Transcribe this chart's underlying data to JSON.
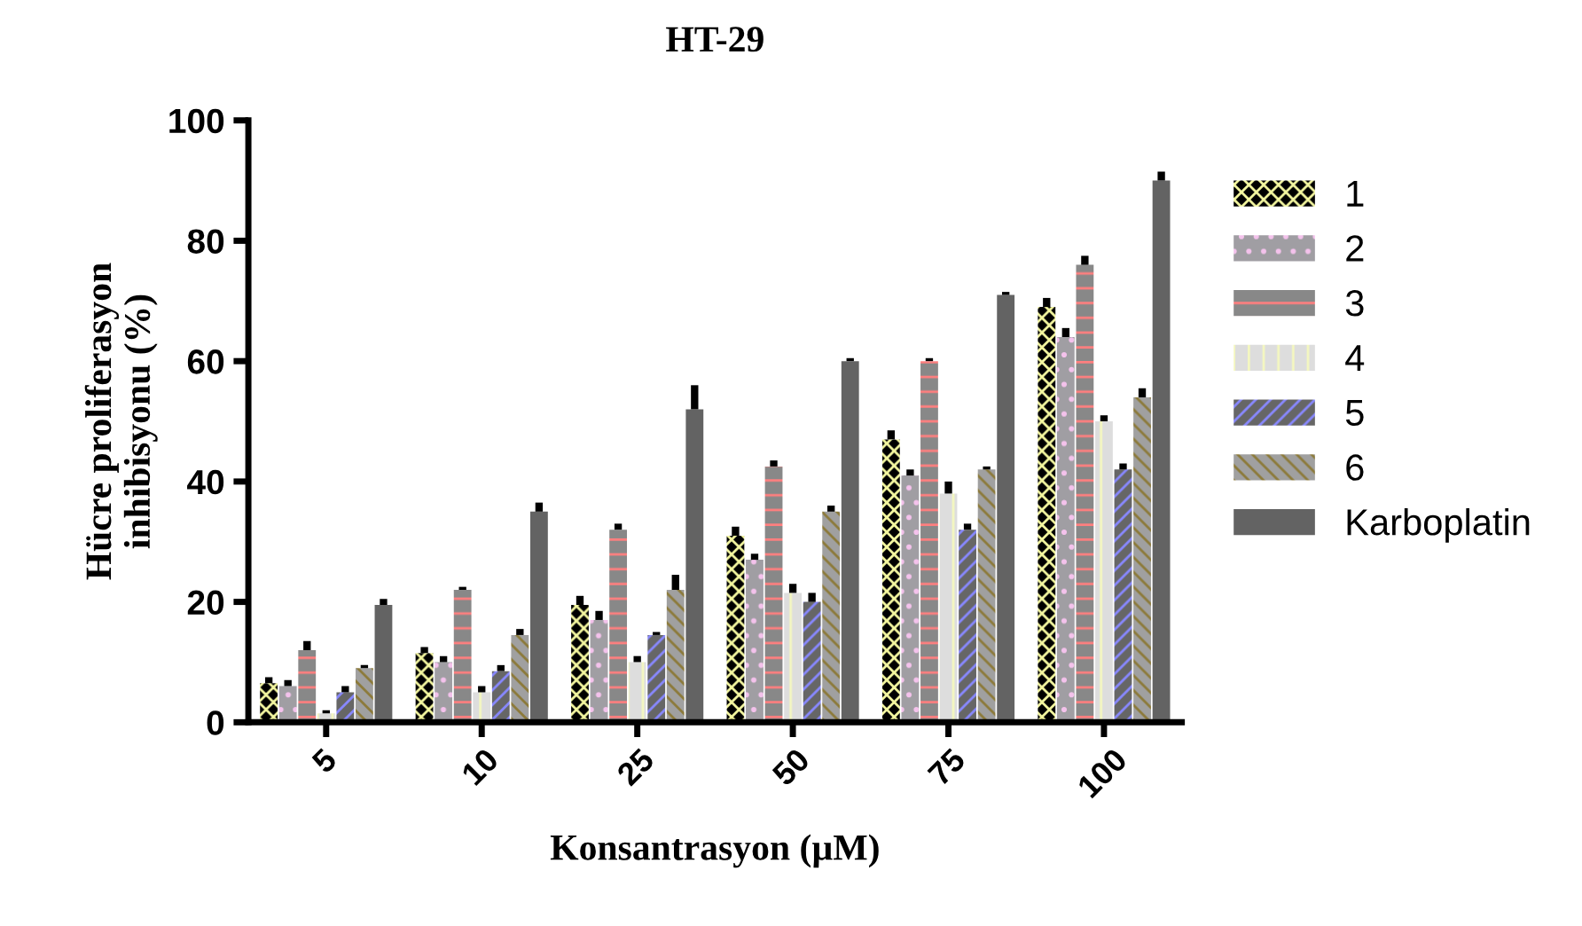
{
  "chart_data": {
    "type": "bar",
    "title": "HT-29",
    "xlabel": "Konsantrasyon (µM)",
    "ylabel": "Hücre proliferasyon\ninhibisyonu (%)",
    "categories": [
      "5",
      "10",
      "25",
      "50",
      "75",
      "100"
    ],
    "ylim": [
      0,
      100
    ],
    "yticks": [
      0,
      20,
      40,
      60,
      80,
      100
    ],
    "grid": false,
    "legend": "right",
    "series": [
      {
        "name": "1",
        "color": "#000000",
        "values": [
          6.5,
          11.5,
          19.5,
          31,
          47,
          69
        ],
        "errors": [
          1,
          1,
          1.5,
          1.5,
          1.5,
          1.5
        ]
      },
      {
        "name": "2",
        "color": "#a09ea3",
        "values": [
          6,
          10,
          17,
          27,
          41,
          64
        ],
        "errors": [
          1,
          1,
          1.5,
          1,
          1,
          1.5
        ]
      },
      {
        "name": "3",
        "color": "#888888",
        "values": [
          12,
          22,
          32,
          42.5,
          60,
          76
        ],
        "errors": [
          1.5,
          0.5,
          1,
          1,
          0.5,
          1.5
        ]
      },
      {
        "name": "4",
        "color": "#dddddd",
        "values": [
          1.5,
          5,
          10,
          21.5,
          38,
          50
        ],
        "errors": [
          0.5,
          1,
          1,
          1.5,
          2,
          1
        ]
      },
      {
        "name": "5",
        "color": "#666666",
        "values": [
          5,
          8.5,
          14.5,
          20,
          32,
          42
        ],
        "errors": [
          1,
          1,
          0.5,
          1.5,
          1,
          1
        ]
      },
      {
        "name": "6",
        "color": "#a0a0a0",
        "values": [
          9,
          14.5,
          22,
          35,
          42,
          54
        ],
        "errors": [
          0.5,
          1,
          2.5,
          1,
          0.5,
          1.5
        ]
      },
      {
        "name": "Karboplatin",
        "color": "#636363",
        "values": [
          19.5,
          35,
          52,
          60,
          71,
          90
        ],
        "errors": [
          1,
          1.5,
          4,
          0.5,
          0.5,
          1.5
        ]
      }
    ]
  }
}
